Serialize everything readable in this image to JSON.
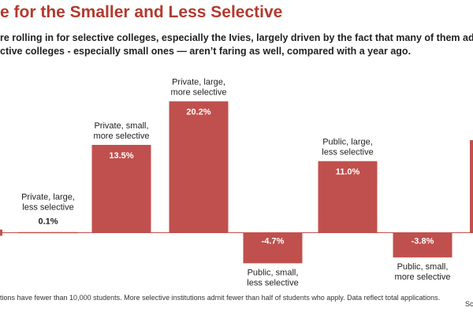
{
  "title": "e for the Smaller and Less Selective",
  "subtitle_lines": [
    "re rolling in for selective colleges, especially the Ivies, largely driven by the fact that many of them adopted test-opt",
    "ctive colleges - especially small ones — aren’t faring as well, compared with a year ago."
  ],
  "footnote": "tions have fewer than 10,000 students. More selective institutions admit fewer than half of students who apply. Data reflect total applications.",
  "source": "Sc",
  "colors": {
    "bar": "#c0504d",
    "value_label_fill": "#ffffff",
    "label": "#222222",
    "baseline": "#c0504d"
  },
  "chart_data": {
    "type": "bar",
    "title": "e for the Smaller and Less Selective",
    "xlabel": "",
    "ylabel": "",
    "ylim": [
      -6,
      23
    ],
    "grid": false,
    "categories": [
      "Private, large, less selective",
      "Private, small, more selective",
      "Private, large, more selective",
      "Public, small, less selective",
      "Public, large, less selective",
      "Public, small, more selective"
    ],
    "category_label_lines": [
      [
        "Private, large,",
        "less selective"
      ],
      [
        "Private, small,",
        "more selective"
      ],
      [
        "Private, large,",
        "more selective"
      ],
      [
        "Public, small,",
        "less selective"
      ],
      [
        "Public, large,",
        "less selective"
      ],
      [
        "Public, small,",
        "more selective"
      ]
    ],
    "values": [
      0.1,
      13.5,
      20.2,
      -4.7,
      11.0,
      -3.8
    ],
    "value_labels": [
      "0.1%",
      "13.5%",
      "20.2%",
      "-4.7%",
      "11.0%",
      "-3.8%"
    ]
  }
}
